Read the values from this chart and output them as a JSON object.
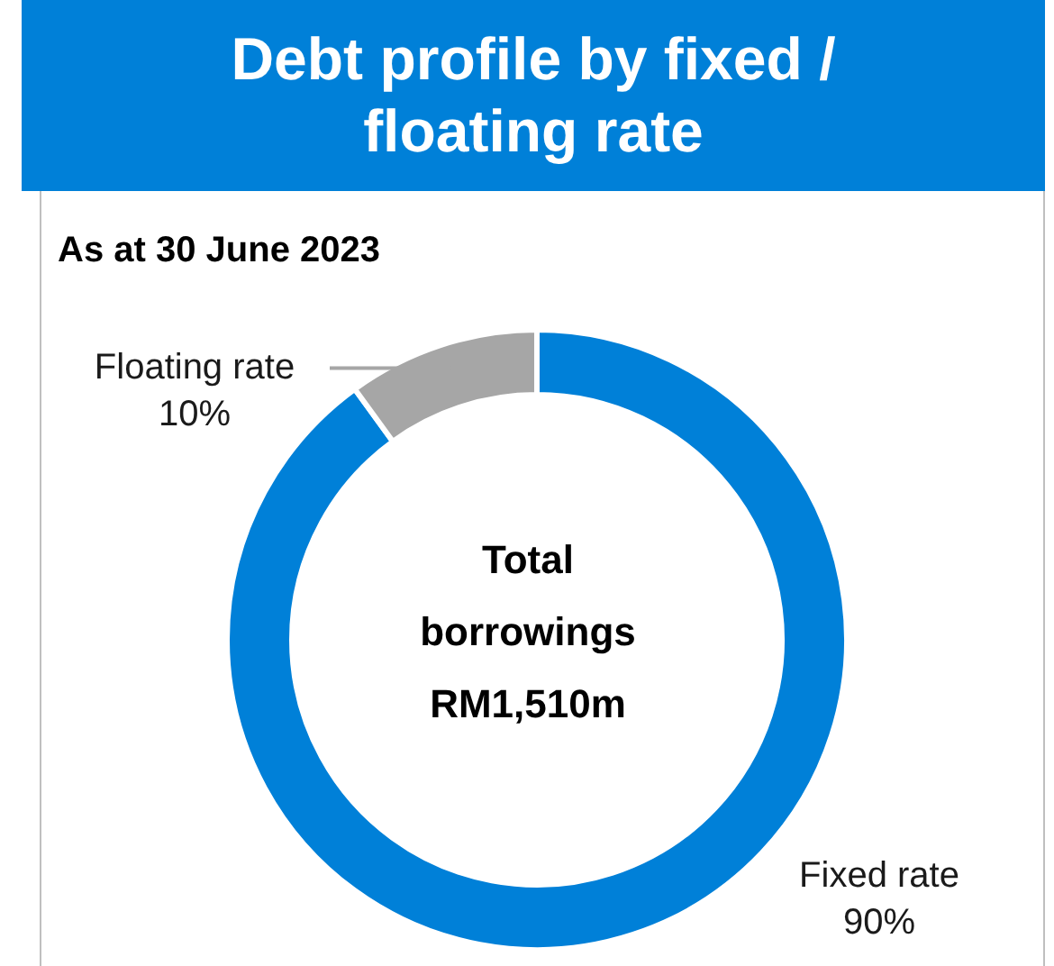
{
  "chart_data": {
    "type": "donut",
    "title": "Debt profile by fixed / floating rate",
    "subtitle": "As at 30 June 2023",
    "categories": [
      "Fixed rate",
      "Floating rate"
    ],
    "values": [
      90,
      10
    ],
    "colors": [
      "#0080d8",
      "#a6a6a6"
    ],
    "value_labels": [
      "90%",
      "10%"
    ],
    "annotations": [
      "Total borrowings RM1,510m"
    ]
  }
}
